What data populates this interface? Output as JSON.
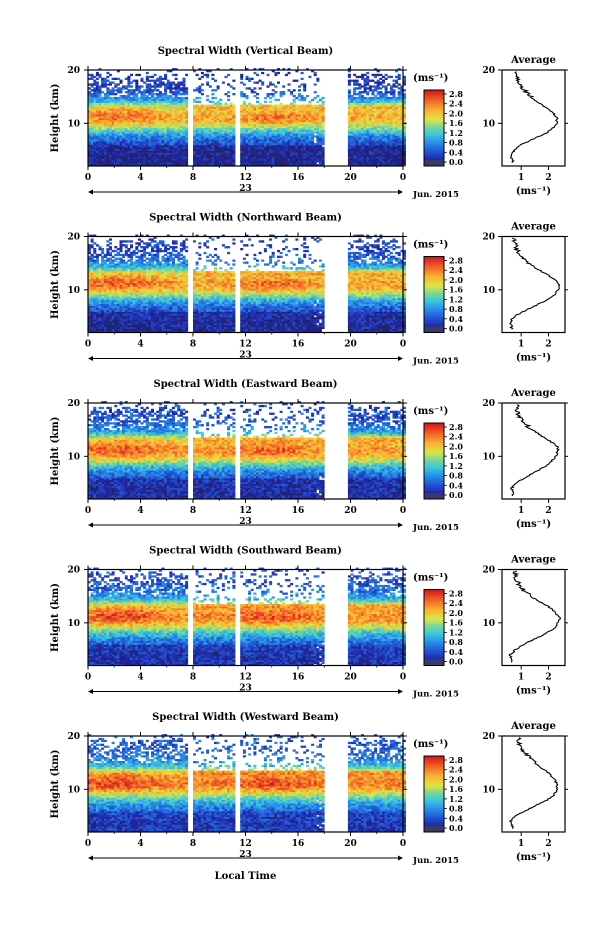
{
  "figure": {
    "xaxis_label": "Local Time",
    "date_label": "Jun. 2015",
    "day_label": "23",
    "time_ticks": [
      "0",
      "4",
      "8",
      "12",
      "16",
      "20",
      "0"
    ],
    "height_ticks": [
      "20",
      "10"
    ],
    "height_label": "Height (km)",
    "colorbar_unit": "(ms⁻¹)",
    "colorbar_ticks": [
      "2.8",
      "2.4",
      "2.0",
      "1.6",
      "1.2",
      "0.8",
      "0.4",
      "0.0"
    ],
    "colorbar_colors": [
      "#d7191c",
      "#f46d2a",
      "#fdae3a",
      "#f5e23b",
      "#a6d96a",
      "#3fc8b7",
      "#2b9ee0",
      "#2166c8",
      "#1a2fa8",
      "#2a2a8a"
    ],
    "average_title": "Average",
    "average_xlabel": "(ms⁻¹)"
  },
  "panels": [
    {
      "title": "Spectral Width (Vertical Beam)",
      "avg_ticks": [
        "1",
        "2"
      ]
    },
    {
      "title": "Spectral Width (Northward Beam)",
      "avg_ticks": [
        "1",
        "2"
      ]
    },
    {
      "title": "Spectral Width (Eastward Beam)",
      "avg_ticks": [
        "1",
        "2"
      ]
    },
    {
      "title": "Spectral Width (Southward Beam)",
      "avg_ticks": [
        "1",
        "2"
      ]
    },
    {
      "title": "Spectral Width (Westward Beam)",
      "avg_ticks": [
        "1",
        "2"
      ]
    }
  ],
  "chart_data": [
    {
      "type": "heatmap",
      "title": "Spectral Width (Vertical Beam)",
      "xlabel": "Local Time",
      "ylabel": "Height (km)",
      "xlim": [
        0,
        24
      ],
      "ylim": [
        2,
        20
      ],
      "clim": [
        0.0,
        3.0
      ],
      "data_gaps_hours": [
        [
          7.6,
          8.1
        ],
        [
          11.2,
          11.6
        ],
        [
          18.0,
          19.7
        ]
      ],
      "avg_profile": {
        "xlabel": "(ms⁻¹)",
        "xlim": [
          0.3,
          2.6
        ],
        "ylim": [
          2,
          20
        ],
        "height_km": [
          3,
          4,
          5,
          6,
          7,
          8,
          9,
          10,
          11,
          12,
          13,
          14,
          15,
          16,
          17,
          18,
          19
        ],
        "width_ms": [
          0.7,
          0.6,
          0.75,
          1.0,
          1.4,
          1.85,
          2.15,
          2.3,
          2.3,
          2.15,
          1.9,
          1.6,
          1.35,
          1.15,
          1.0,
          0.9,
          0.85
        ]
      }
    },
    {
      "type": "heatmap",
      "title": "Spectral Width (Northward Beam)",
      "xlabel": "Local Time",
      "ylabel": "Height (km)",
      "xlim": [
        0,
        24
      ],
      "ylim": [
        2,
        20
      ],
      "clim": [
        0.0,
        3.0
      ],
      "data_gaps_hours": [
        [
          7.6,
          8.1
        ],
        [
          11.2,
          11.6
        ],
        [
          18.0,
          19.7
        ]
      ],
      "avg_profile": {
        "xlabel": "(ms⁻¹)",
        "xlim": [
          0.3,
          2.6
        ],
        "ylim": [
          2,
          20
        ],
        "height_km": [
          3,
          4,
          5,
          6,
          7,
          8,
          9,
          10,
          11,
          12,
          13,
          14,
          15,
          16,
          17,
          18,
          19
        ],
        "width_ms": [
          0.65,
          0.6,
          0.75,
          1.1,
          1.5,
          1.9,
          2.2,
          2.35,
          2.4,
          2.2,
          1.9,
          1.55,
          1.3,
          1.05,
          0.9,
          0.8,
          0.75
        ]
      }
    },
    {
      "type": "heatmap",
      "title": "Spectral Width (Eastward Beam)",
      "xlabel": "Local Time",
      "ylabel": "Height (km)",
      "xlim": [
        0,
        24
      ],
      "ylim": [
        2,
        20
      ],
      "clim": [
        0.0,
        3.0
      ],
      "data_gaps_hours": [
        [
          7.6,
          8.1
        ],
        [
          11.2,
          11.6
        ],
        [
          18.0,
          19.7
        ]
      ],
      "avg_profile": {
        "xlabel": "(ms⁻¹)",
        "xlim": [
          0.3,
          2.6
        ],
        "ylim": [
          2,
          20
        ],
        "height_km": [
          3,
          4,
          5,
          6,
          7,
          8,
          9,
          10,
          11,
          12,
          13,
          14,
          15,
          16,
          17,
          18,
          19
        ],
        "width_ms": [
          0.7,
          0.65,
          0.8,
          1.15,
          1.5,
          1.85,
          2.1,
          2.25,
          2.35,
          2.3,
          2.0,
          1.7,
          1.4,
          1.15,
          1.0,
          0.9,
          0.85
        ]
      }
    },
    {
      "type": "heatmap",
      "title": "Spectral Width (Southward Beam)",
      "xlabel": "Local Time",
      "ylabel": "Height (km)",
      "xlim": [
        0,
        24
      ],
      "ylim": [
        2,
        20
      ],
      "clim": [
        0.0,
        3.0
      ],
      "data_gaps_hours": [
        [
          7.6,
          8.1
        ],
        [
          11.2,
          11.6
        ],
        [
          18.0,
          19.7
        ]
      ],
      "avg_profile": {
        "xlabel": "(ms⁻¹)",
        "xlim": [
          0.3,
          2.6
        ],
        "ylim": [
          2,
          20
        ],
        "height_km": [
          3,
          4,
          5,
          6,
          7,
          8,
          9,
          10,
          11,
          12,
          13,
          14,
          15,
          16,
          17,
          18,
          19
        ],
        "width_ms": [
          0.65,
          0.6,
          0.8,
          1.1,
          1.5,
          1.9,
          2.2,
          2.35,
          2.4,
          2.25,
          2.0,
          1.65,
          1.35,
          1.1,
          0.95,
          0.85,
          0.8
        ]
      }
    },
    {
      "type": "heatmap",
      "title": "Spectral Width (Westward Beam)",
      "xlabel": "Local Time",
      "ylabel": "Height (km)",
      "xlim": [
        0,
        24
      ],
      "ylim": [
        2,
        20
      ],
      "clim": [
        0.0,
        3.0
      ],
      "data_gaps_hours": [
        [
          7.6,
          8.1
        ],
        [
          11.2,
          11.6
        ],
        [
          18.0,
          19.7
        ]
      ],
      "avg_profile": {
        "xlabel": "(ms⁻¹)",
        "xlim": [
          0.3,
          2.6
        ],
        "ylim": [
          2,
          20
        ],
        "height_km": [
          3,
          4,
          5,
          6,
          7,
          8,
          9,
          10,
          11,
          12,
          13,
          14,
          15,
          16,
          17,
          18,
          19
        ],
        "width_ms": [
          0.7,
          0.6,
          0.8,
          1.15,
          1.55,
          1.95,
          2.2,
          2.3,
          2.3,
          2.2,
          2.0,
          1.75,
          1.5,
          1.3,
          1.1,
          0.95,
          0.9
        ]
      }
    }
  ]
}
